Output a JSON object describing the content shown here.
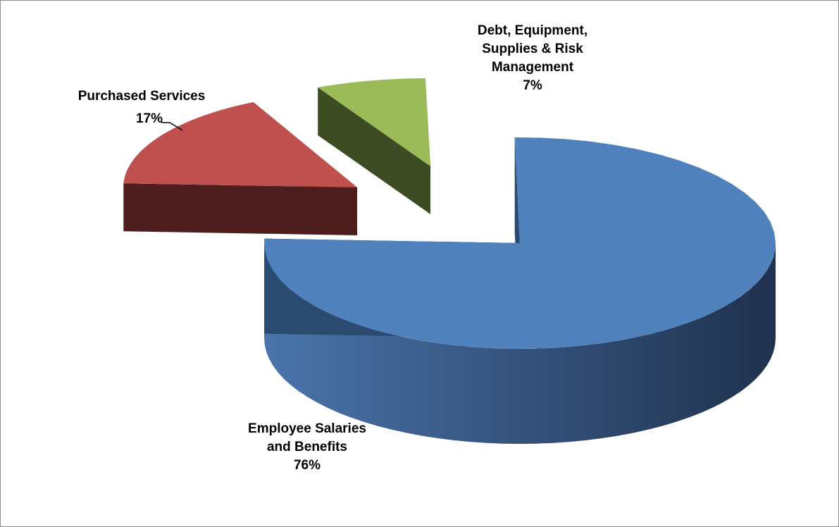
{
  "chart_data": {
    "type": "pie",
    "style": "3d-exploded",
    "legend": "none",
    "slices": [
      {
        "label_lines": [
          "Employee Salaries",
          "and Benefits"
        ],
        "percent_label": "76%",
        "value": 76,
        "color": "#4f81bd",
        "side_color": "#2b4a6f"
      },
      {
        "label_lines": [
          "Purchased Services"
        ],
        "percent_label": "17%",
        "value": 17,
        "color": "#c0504d",
        "side_color": "#4e1e1e"
      },
      {
        "label_lines": [
          "Debt, Equipment,",
          "Supplies & Risk",
          "Management"
        ],
        "percent_label": "7%",
        "value": 7,
        "color": "#9bbb59",
        "side_color": "#3d4c22"
      }
    ]
  }
}
